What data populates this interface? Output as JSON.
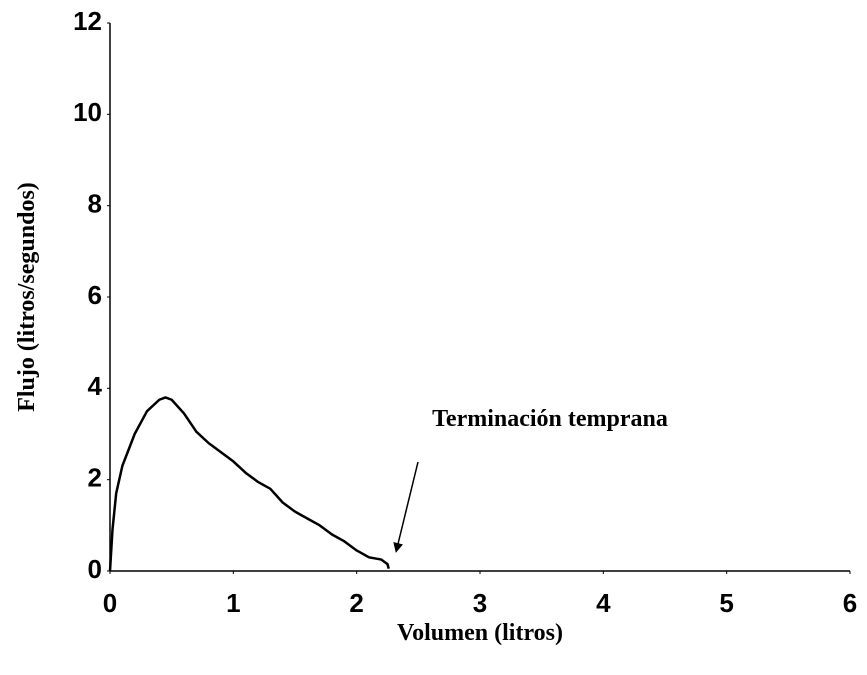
{
  "chart_data": {
    "type": "line",
    "x_label": "Volumen (litros)",
    "y_label": "Flujo (litros/segundos)",
    "annotation": "Terminación temprana",
    "xlim": [
      0,
      6
    ],
    "ylim": [
      0,
      12
    ],
    "xticks": [
      0,
      1,
      2,
      3,
      4,
      5,
      6
    ],
    "yticks": [
      0,
      2,
      4,
      6,
      8,
      10,
      12
    ],
    "grid": false,
    "series": [
      {
        "color": "#000000",
        "x": [
          0,
          0.02,
          0.05,
          0.1,
          0.2,
          0.3,
          0.4,
          0.45,
          0.5,
          0.6,
          0.7,
          0.8,
          0.9,
          1.0,
          1.1,
          1.2,
          1.3,
          1.4,
          1.5,
          1.6,
          1.7,
          1.8,
          1.9,
          2.0,
          2.1,
          2.2,
          2.25,
          2.26
        ],
        "values": [
          0,
          0.9,
          1.7,
          2.3,
          3.0,
          3.5,
          3.75,
          3.8,
          3.75,
          3.45,
          3.05,
          2.8,
          2.6,
          2.4,
          2.15,
          1.95,
          1.8,
          1.5,
          1.3,
          1.15,
          1.0,
          0.8,
          0.65,
          0.45,
          0.3,
          0.25,
          0.15,
          0.05
        ]
      }
    ]
  }
}
